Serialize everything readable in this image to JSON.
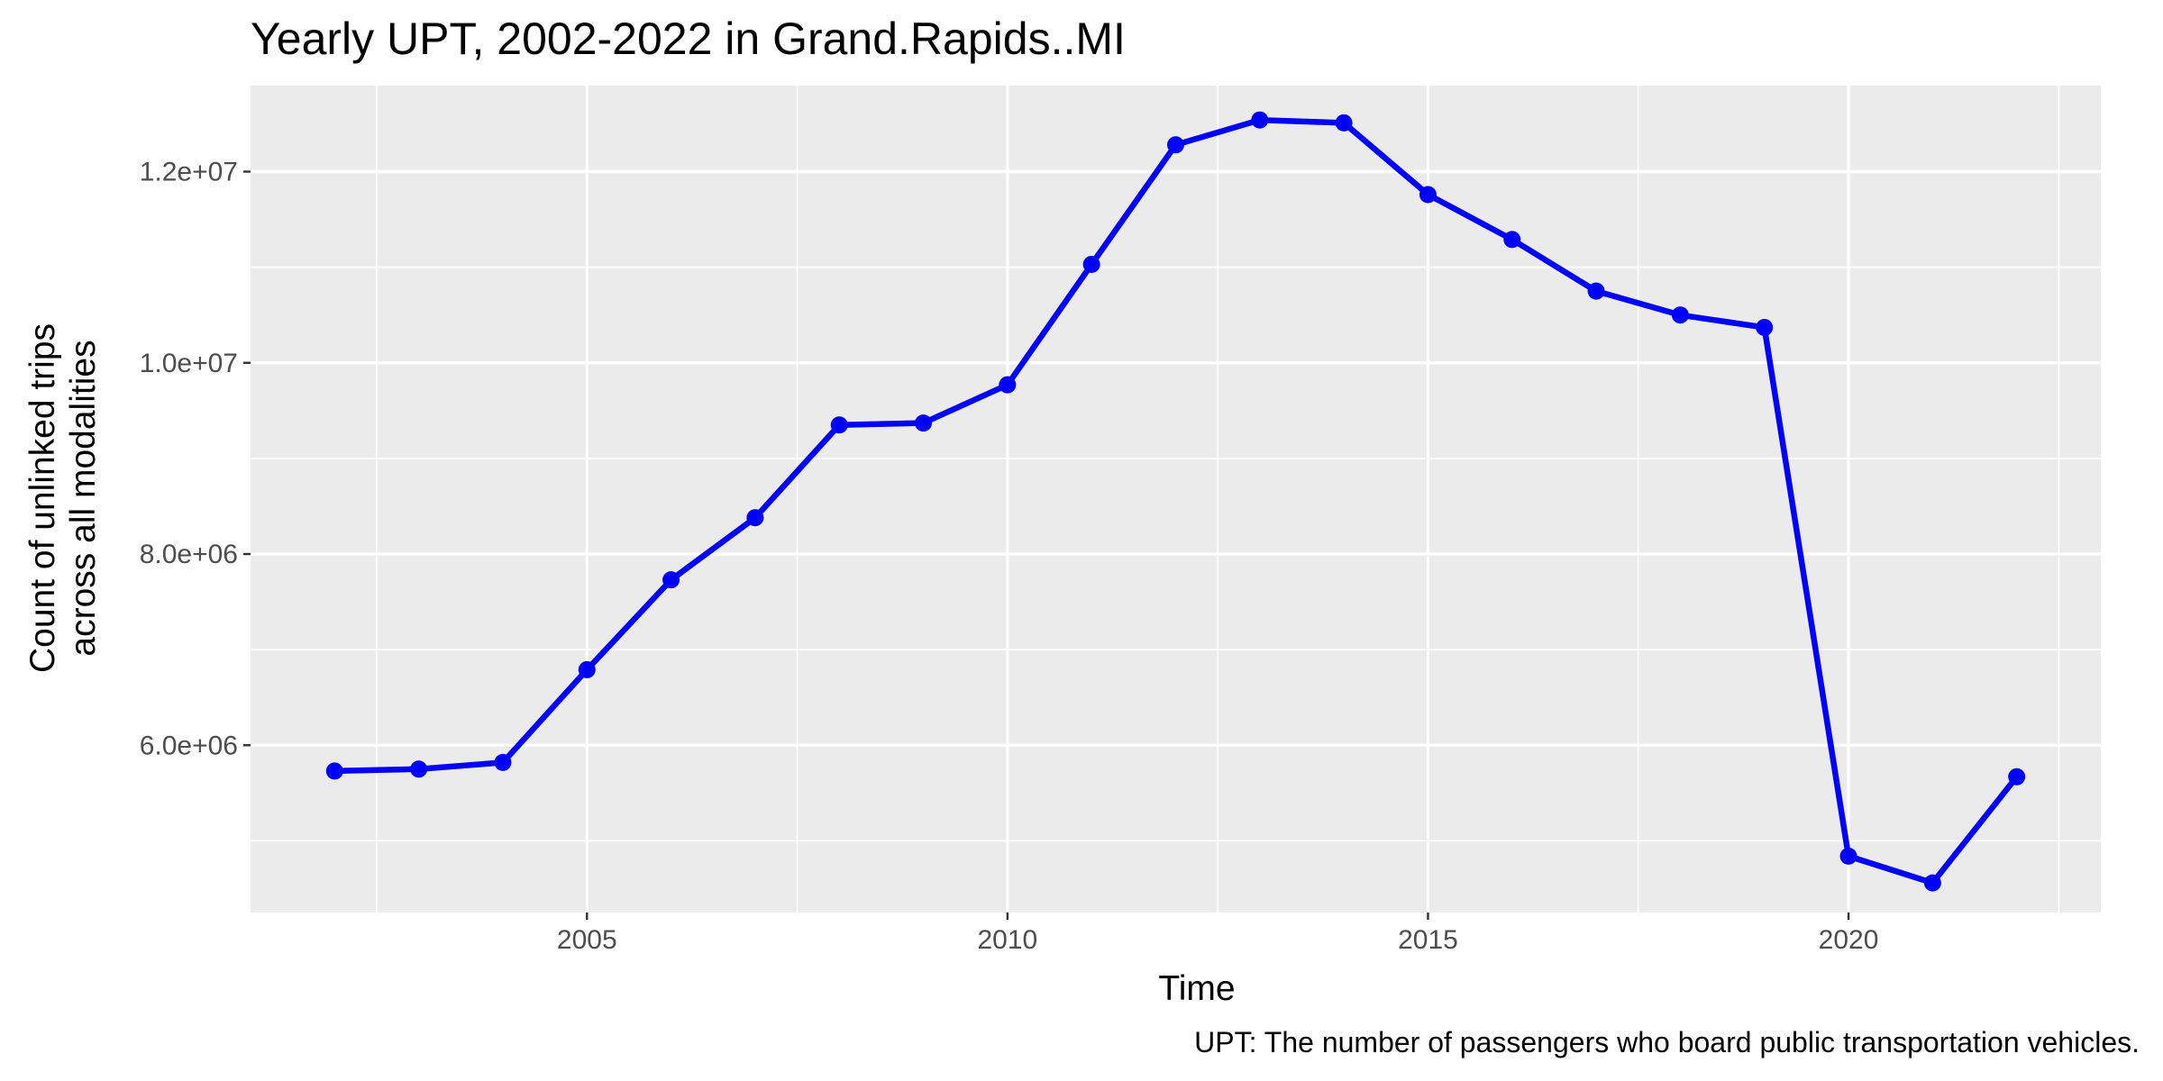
{
  "chart_data": {
    "type": "line",
    "title": "Yearly UPT, 2002-2022 in Grand.Rapids..MI",
    "xlabel": "Time",
    "ylabel_lines": [
      "Count of unlinked trips",
      "across all modalities"
    ],
    "caption": "UPT: The number of passengers who board public transportation vehicles.",
    "xlim": [
      2001,
      2023
    ],
    "ylim": [
      4250000,
      12900000
    ],
    "x_major_ticks": [
      2005,
      2010,
      2015,
      2020
    ],
    "x_tick_labels": [
      "2005",
      "2010",
      "2015",
      "2020"
    ],
    "x_minor_ticks": [
      2002.5,
      2007.5,
      2012.5,
      2017.5,
      2022.5
    ],
    "y_major_ticks": [
      6000000,
      8000000,
      10000000,
      12000000
    ],
    "y_tick_labels": [
      "6.0e+06",
      "8.0e+06",
      "1.0e+07",
      "1.2e+07"
    ],
    "y_minor_ticks": [
      5000000,
      7000000,
      9000000,
      11000000
    ],
    "grid": true,
    "colors": {
      "line": "#0000ff",
      "panel": "#ebebeb",
      "grid": "#ffffff"
    },
    "series": [
      {
        "x": [
          2002,
          2003,
          2004,
          2005,
          2006,
          2007,
          2008,
          2009,
          2010,
          2011,
          2012,
          2013,
          2014,
          2015,
          2016,
          2017,
          2018,
          2019,
          2020,
          2021,
          2022
        ],
        "y": [
          5730000,
          5750000,
          5820000,
          6790000,
          7730000,
          8380000,
          9350000,
          9370000,
          9770000,
          11030000,
          12280000,
          12540000,
          12510000,
          11760000,
          11290000,
          10750000,
          10500000,
          10370000,
          4840000,
          4560000,
          5670000
        ]
      }
    ]
  }
}
